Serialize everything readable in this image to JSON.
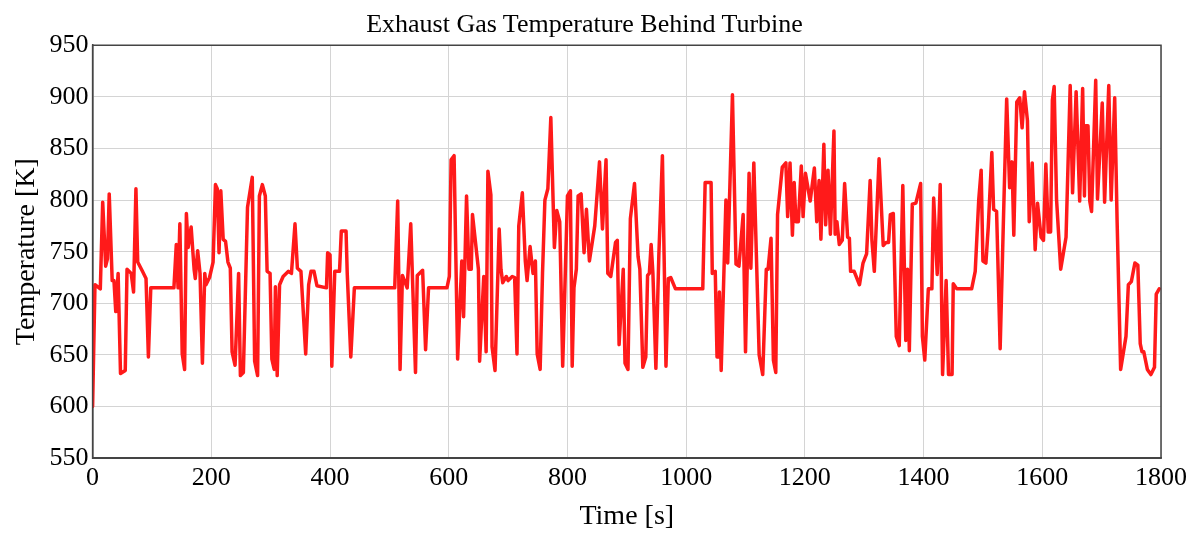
{
  "chart_data": {
    "type": "line",
    "title": "Exhaust Gas Temperature Behind Turbine",
    "xlabel": "Time [s]",
    "ylabel": "Temperature [K]",
    "xlim": [
      0,
      1800
    ],
    "xticks": [
      0,
      200,
      400,
      600,
      800,
      1000,
      1200,
      1400,
      1600,
      1800
    ],
    "ylim": [
      550,
      950
    ],
    "yticks": [
      550,
      600,
      650,
      700,
      750,
      800,
      850,
      900,
      950
    ],
    "grid": true,
    "legend": false,
    "marker": "none",
    "line_style": "solid",
    "series": [
      {
        "color": "#ff1a1a",
        "x": [
          0,
          4,
          13,
          17,
          22,
          25,
          28,
          33,
          36,
          39,
          43,
          47,
          55,
          58,
          65,
          69,
          73,
          76,
          84,
          90,
          94,
          98,
          137,
          141,
          144,
          147,
          151,
          155,
          158,
          161,
          166,
          171,
          173,
          177,
          181,
          185,
          189,
          191,
          197,
          203,
          207,
          210,
          213,
          216,
          220,
          224,
          228,
          232,
          235,
          240,
          246,
          249,
          254,
          261,
          269,
          273,
          278,
          281,
          286,
          291,
          294,
          299,
          302,
          306,
          308,
          311,
          315,
          321,
          330,
          335,
          341,
          345,
          351,
          359,
          364,
          368,
          373,
          378,
          394,
          396,
          400,
          403,
          408,
          416,
          419,
          427,
          429,
          435,
          441,
          509,
          514,
          518,
          522,
          530,
          536,
          544,
          547,
          556,
          561,
          566,
          597,
          601,
          604,
          609,
          615,
          622,
          625,
          630,
          634,
          638,
          640,
          650,
          652,
          659,
          663,
          666,
          671,
          673,
          678,
          685,
          688,
          691,
          697,
          700,
          707,
          711,
          715,
          718,
          724,
          729,
          732,
          737,
          742,
          746,
          749,
          754,
          758,
          762,
          767,
          772,
          778,
          782,
          787,
          792,
          800,
          805,
          808,
          811,
          815,
          818,
          823,
          828,
          832,
          837,
          846,
          854,
          859,
          865,
          868,
          873,
          881,
          884,
          887,
          894,
          897,
          902,
          906,
          913,
          919,
          922,
          927,
          932,
          935,
          938,
          941,
          944,
          949,
          954,
          960,
          966,
          970,
          974,
          982,
          1028,
          1032,
          1042,
          1044,
          1049,
          1052,
          1055,
          1056,
          1059,
          1067,
          1070,
          1078,
          1084,
          1089,
          1096,
          1100,
          1106,
          1109,
          1114,
          1123,
          1129,
          1135,
          1138,
          1143,
          1147,
          1151,
          1154,
          1162,
          1168,
          1171,
          1175,
          1179,
          1182,
          1185,
          1189,
          1194,
          1197,
          1201,
          1209,
          1216,
          1220,
          1224,
          1227,
          1232,
          1235,
          1239,
          1243,
          1249,
          1251,
          1254,
          1258,
          1263,
          1267,
          1272,
          1275,
          1277,
          1283,
          1292,
          1298,
          1304,
          1310,
          1313,
          1317,
          1325,
          1332,
          1337,
          1341,
          1344,
          1349,
          1354,
          1359,
          1365,
          1370,
          1373,
          1376,
          1381,
          1387,
          1395,
          1398,
          1402,
          1408,
          1414,
          1417,
          1423,
          1428,
          1432,
          1438,
          1442,
          1448,
          1450,
          1456,
          1481,
          1487,
          1493,
          1497,
          1500,
          1505,
          1509,
          1515,
          1518,
          1523,
          1529,
          1535,
          1540,
          1545,
          1549,
          1552,
          1557,
          1562,
          1566,
          1570,
          1575,
          1578,
          1583,
          1588,
          1592,
          1598,
          1602,
          1606,
          1610,
          1614,
          1617,
          1620,
          1624,
          1631,
          1640,
          1647,
          1651,
          1657,
          1663,
          1668,
          1671,
          1673,
          1677,
          1680,
          1683,
          1690,
          1693,
          1701,
          1705,
          1712,
          1716,
          1722,
          1726,
          1732,
          1741,
          1745,
          1750,
          1756,
          1761,
          1765,
          1768,
          1771,
          1777,
          1783,
          1789,
          1792,
          1797
        ],
        "values": [
          600,
          718,
          714,
          798,
          736,
          743,
          806,
          722,
          722,
          692,
          729,
          632,
          635,
          733,
          729,
          711,
          811,
          740,
          731,
          724,
          648,
          715,
          715,
          757,
          715,
          777,
          651,
          636,
          787,
          754,
          774,
          733,
          724,
          751,
          729,
          642,
          729,
          718,
          725,
          740,
          815,
          811,
          749,
          809,
          762,
          760,
          740,
          734,
          653,
          640,
          729,
          630,
          633,
          793,
          822,
          644,
          630,
          804,
          815,
          804,
          731,
          729,
          646,
          636,
          716,
          630,
          718,
          726,
          731,
          729,
          777,
          734,
          731,
          651,
          718,
          731,
          731,
          717,
          715,
          749,
          747,
          639,
          731,
          731,
          770,
          770,
          729,
          648,
          715,
          715,
          799,
          636,
          727,
          715,
          777,
          633,
          727,
          732,
          655,
          715,
          715,
          726,
          839,
          843,
          646,
          741,
          687,
          804,
          733,
          733,
          786,
          733,
          644,
          726,
          653,
          828,
          805,
          658,
          635,
          772,
          733,
          720,
          726,
          722,
          726,
          725,
          651,
          775,
          807,
          741,
          722,
          755,
          729,
          741,
          651,
          636,
          729,
          800,
          811,
          880,
          754,
          790,
          779,
          639,
          804,
          809,
          639,
          715,
          733,
          804,
          806,
          749,
          791,
          741,
          775,
          837,
          772,
          839,
          729,
          726,
          759,
          761,
          660,
          733,
          642,
          636,
          782,
          816,
          745,
          733,
          638,
          648,
          727,
          729,
          757,
          729,
          637,
          747,
          843,
          639,
          724,
          725,
          714,
          714,
          817,
          817,
          729,
          731,
          648,
          648,
          711,
          635,
          800,
          739,
          902,
          738,
          736,
          786,
          653,
          826,
          734,
          836,
          650,
          631,
          733,
          733,
          763,
          645,
          633,
          786,
          832,
          836,
          784,
          836,
          766,
          817,
          779,
          779,
          833,
          784,
          826,
          799,
          831,
          779,
          819,
          762,
          854,
          776,
          829,
          767,
          867,
          767,
          779,
          757,
          761,
          816,
          764,
          763,
          731,
          731,
          718,
          739,
          748,
          819,
          761,
          731,
          840,
          756,
          759,
          759,
          786,
          787,
          668,
          659,
          814,
          664,
          733,
          654,
          796,
          797,
          816,
          668,
          645,
          714,
          714,
          802,
          728,
          815,
          631,
          722,
          631,
          631,
          719,
          714,
          714,
          731,
          801,
          829,
          741,
          739,
          774,
          846,
          791,
          789,
          656,
          791,
          898,
          812,
          837,
          766,
          895,
          899,
          870,
          905,
          877,
          779,
          836,
          752,
          797,
          764,
          761,
          835,
          769,
          769,
          897,
          910,
          801,
          733,
          764,
          911,
          807,
          905,
          799,
          908,
          804,
          872,
          872,
          799,
          789,
          916,
          801,
          894,
          798,
          911,
          800,
          899,
          781,
          636,
          668,
          718,
          721,
          739,
          737,
          661,
          653,
          653,
          636,
          631,
          638,
          709,
          714
        ]
      }
    ]
  }
}
